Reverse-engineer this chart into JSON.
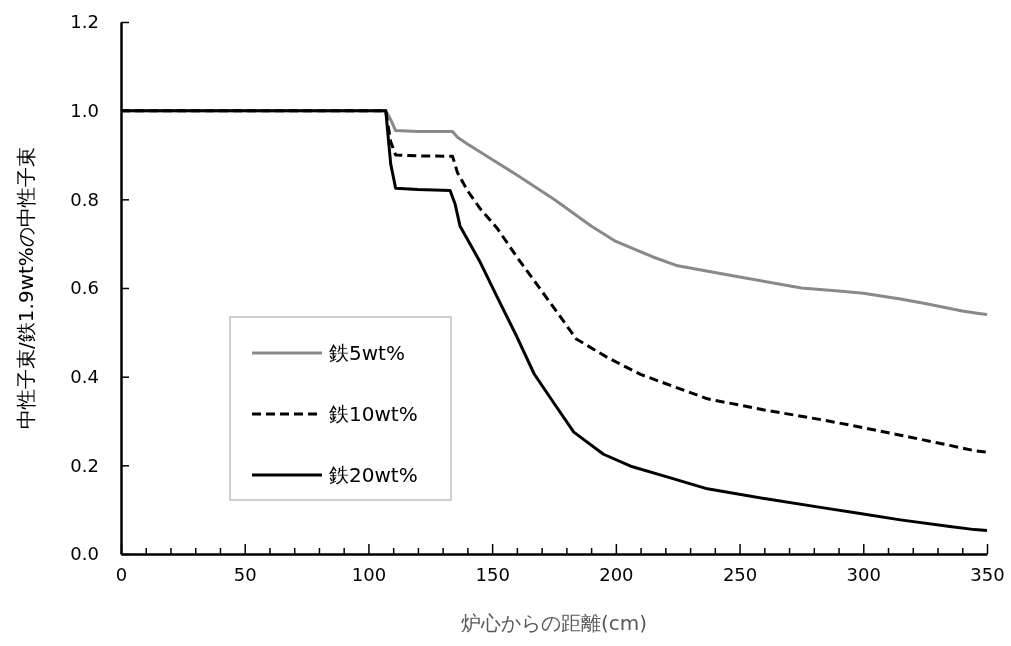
{
  "chart_data": {
    "type": "line",
    "xlabel": "炉心からの距離(cm)",
    "ylabel": "中性子束/鉄1.9wt%の中性子束",
    "xlim": [
      0,
      350
    ],
    "ylim": [
      0,
      1.2
    ],
    "xticks": [
      0,
      {
        "value": 10,
        "label": null
      },
      {
        "value": 20,
        "label": null
      },
      {
        "value": 30,
        "label": null
      },
      {
        "value": 40,
        "label": null
      },
      50,
      {
        "value": 60,
        "label": null
      },
      {
        "value": 70,
        "label": null
      },
      {
        "value": 80,
        "label": null
      },
      {
        "value": 90,
        "label": null
      },
      100,
      {
        "value": 110,
        "label": null
      },
      {
        "value": 120,
        "label": null
      },
      {
        "value": 130,
        "label": null
      },
      {
        "value": 140,
        "label": null
      },
      150,
      {
        "value": 160,
        "label": null
      },
      {
        "value": 170,
        "label": null
      },
      {
        "value": 180,
        "label": null
      },
      {
        "value": 190,
        "label": null
      },
      200,
      {
        "value": 210,
        "label": null
      },
      {
        "value": 220,
        "label": null
      },
      {
        "value": 230,
        "label": null
      },
      {
        "value": 240,
        "label": null
      },
      250,
      {
        "value": 260,
        "label": null
      },
      {
        "value": 270,
        "label": null
      },
      {
        "value": 280,
        "label": null
      },
      {
        "value": 290,
        "label": null
      },
      300,
      {
        "value": 310,
        "label": null
      },
      {
        "value": 320,
        "label": null
      },
      {
        "value": 330,
        "label": null
      },
      {
        "value": 340,
        "label": null
      },
      350
    ],
    "yticks": [
      {
        "value": 0,
        "label": "0.0"
      },
      {
        "value": 0.2,
        "label": "0.2"
      },
      {
        "value": 0.4,
        "label": "0.4"
      },
      {
        "value": 0.6,
        "label": "0.6"
      },
      {
        "value": 0.8,
        "label": "0.8"
      },
      {
        "value": 1,
        "label": "1.0"
      },
      {
        "value": 1.2,
        "label": "1.2"
      }
    ],
    "grid": false,
    "legend": "bottom left",
    "marker": "none",
    "series": [
      {
        "name": "鉄5wt%",
        "color": "#898989",
        "line_style": "solid",
        "x": [
          0,
          105,
          107,
          109,
          111,
          120,
          134,
          136,
          140,
          150,
          160,
          175,
          190,
          200,
          215,
          225,
          250,
          275,
          290,
          300,
          315,
          325,
          340,
          346,
          350
        ],
        "values": [
          1,
          1,
          1,
          0.98,
          0.955,
          0.953,
          0.953,
          0.94,
          0.925,
          0.89,
          0.855,
          0.8,
          0.74,
          0.705,
          0.67,
          0.65,
          0.625,
          0.6,
          0.593,
          0.588,
          0.575,
          0.565,
          0.548,
          0.543,
          0.54
        ]
      },
      {
        "name": "鉄10wt%",
        "color": "#000000",
        "line_style": "dashed",
        "x": [
          0,
          105,
          107,
          109,
          111,
          120,
          134,
          136,
          140,
          145,
          152,
          160,
          175,
          184,
          197,
          210,
          237,
          260,
          284,
          300,
          315,
          335,
          345,
          350
        ],
        "values": [
          1,
          1,
          1,
          0.93,
          0.9,
          0.898,
          0.897,
          0.86,
          0.82,
          0.78,
          0.735,
          0.67,
          0.555,
          0.485,
          0.442,
          0.405,
          0.35,
          0.325,
          0.302,
          0.285,
          0.268,
          0.245,
          0.233,
          0.23
        ]
      },
      {
        "name": "鉄20wt%",
        "color": "#000000",
        "line_style": "solid",
        "x": [
          0,
          105,
          107,
          109,
          111,
          120,
          133,
          135,
          137,
          145,
          152,
          160,
          167,
          175,
          183,
          195,
          206,
          220,
          237,
          260,
          284,
          300,
          315,
          335,
          345,
          350
        ],
        "values": [
          1,
          1,
          1,
          0.88,
          0.825,
          0.822,
          0.82,
          0.79,
          0.74,
          0.66,
          0.58,
          0.49,
          0.406,
          0.34,
          0.275,
          0.225,
          0.198,
          0.175,
          0.147,
          0.125,
          0.104,
          0.09,
          0.077,
          0.062,
          0.055,
          0.053
        ]
      }
    ]
  }
}
